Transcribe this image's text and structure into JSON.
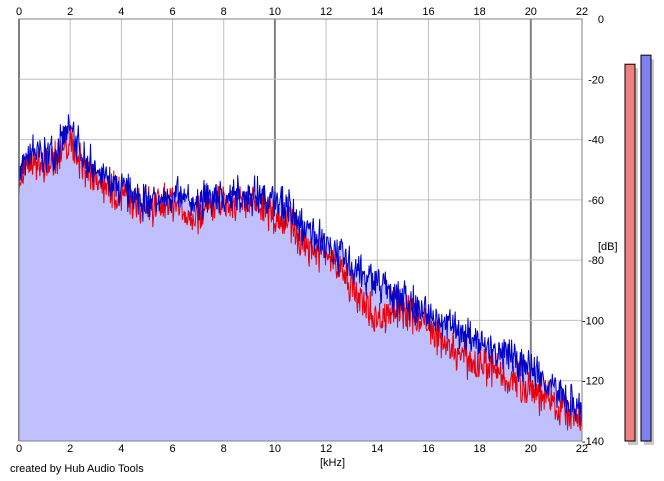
{
  "credit": "created by Hub Audio Tools",
  "colors": {
    "left_channel": "#e8000b",
    "right_channel": "#0000c8",
    "fill": "#c0c0ff",
    "grid_minor": "#c0c0c0",
    "grid_major": "#808080",
    "meter_left": "#f08080",
    "meter_right": "#8080f0"
  },
  "chart_data": {
    "type": "area",
    "xlabel": "[kHz]",
    "ylabel": "[dB]",
    "xlim": [
      0,
      22
    ],
    "ylim": [
      -140,
      0
    ],
    "x_ticks": [
      "0",
      "2",
      "4",
      "6",
      "8",
      "10",
      "12",
      "14",
      "16",
      "18",
      "20",
      "22"
    ],
    "y_ticks": [
      "0",
      "-20",
      "-40",
      "-60",
      "-80",
      "-100",
      "-120",
      "-140"
    ],
    "grid": true,
    "series": [
      {
        "color": "#0000c8",
        "points": [
          [
            0,
            -49
          ],
          [
            0.5,
            -42
          ],
          [
            1,
            -43
          ],
          [
            1.5,
            -40
          ],
          [
            2,
            -34
          ],
          [
            2.5,
            -43
          ],
          [
            3,
            -48
          ],
          [
            3.5,
            -52
          ],
          [
            4,
            -55
          ],
          [
            4.5,
            -56
          ],
          [
            5,
            -59
          ],
          [
            5.5,
            -58
          ],
          [
            6,
            -56
          ],
          [
            6.5,
            -58
          ],
          [
            7,
            -58
          ],
          [
            7.5,
            -57
          ],
          [
            8,
            -57
          ],
          [
            8.5,
            -56
          ],
          [
            9,
            -56
          ],
          [
            9.5,
            -56
          ],
          [
            10,
            -58
          ],
          [
            10.5,
            -60
          ],
          [
            11,
            -67
          ],
          [
            11.5,
            -68
          ],
          [
            12,
            -72
          ],
          [
            12.5,
            -76
          ],
          [
            13,
            -79
          ],
          [
            13.5,
            -83
          ],
          [
            14,
            -85
          ],
          [
            14.5,
            -88
          ],
          [
            15,
            -90
          ],
          [
            15.5,
            -93
          ],
          [
            16,
            -95
          ],
          [
            16.5,
            -97
          ],
          [
            17,
            -100
          ],
          [
            17.5,
            -102
          ],
          [
            18,
            -105
          ],
          [
            18.5,
            -107
          ],
          [
            19,
            -109
          ],
          [
            19.5,
            -111
          ],
          [
            20,
            -113
          ],
          [
            20.5,
            -117
          ],
          [
            21,
            -121
          ],
          [
            21.5,
            -124
          ],
          [
            22,
            -127
          ]
        ]
      },
      {
        "color": "#e8000b",
        "points": [
          [
            0,
            -52
          ],
          [
            0.5,
            -45
          ],
          [
            1,
            -47
          ],
          [
            1.5,
            -44
          ],
          [
            2,
            -38
          ],
          [
            2.5,
            -47
          ],
          [
            3,
            -50
          ],
          [
            3.5,
            -53
          ],
          [
            4,
            -56
          ],
          [
            4.5,
            -58
          ],
          [
            5,
            -60
          ],
          [
            5.5,
            -59
          ],
          [
            6,
            -58
          ],
          [
            6.5,
            -62
          ],
          [
            7,
            -62
          ],
          [
            7.5,
            -60
          ],
          [
            8,
            -59
          ],
          [
            8.5,
            -60
          ],
          [
            9,
            -59
          ],
          [
            9.5,
            -60
          ],
          [
            10,
            -63
          ],
          [
            10.5,
            -64
          ],
          [
            11,
            -71
          ],
          [
            11.5,
            -74
          ],
          [
            12,
            -76
          ],
          [
            12.5,
            -80
          ],
          [
            13,
            -87
          ],
          [
            13.5,
            -93
          ],
          [
            14,
            -97
          ],
          [
            14.5,
            -94
          ],
          [
            15,
            -95
          ],
          [
            15.5,
            -96
          ],
          [
            16,
            -100
          ],
          [
            16.5,
            -104
          ],
          [
            17,
            -108
          ],
          [
            17.5,
            -110
          ],
          [
            18,
            -112
          ],
          [
            18.5,
            -114
          ],
          [
            19,
            -116
          ],
          [
            19.5,
            -118
          ],
          [
            20,
            -120
          ],
          [
            20.5,
            -123
          ],
          [
            21,
            -126
          ],
          [
            21.5,
            -129
          ],
          [
            22,
            -131
          ]
        ]
      }
    ],
    "level_meters": [
      {
        "color": "#f08080",
        "value": -15
      },
      {
        "color": "#8080f0",
        "value": -12
      }
    ]
  }
}
